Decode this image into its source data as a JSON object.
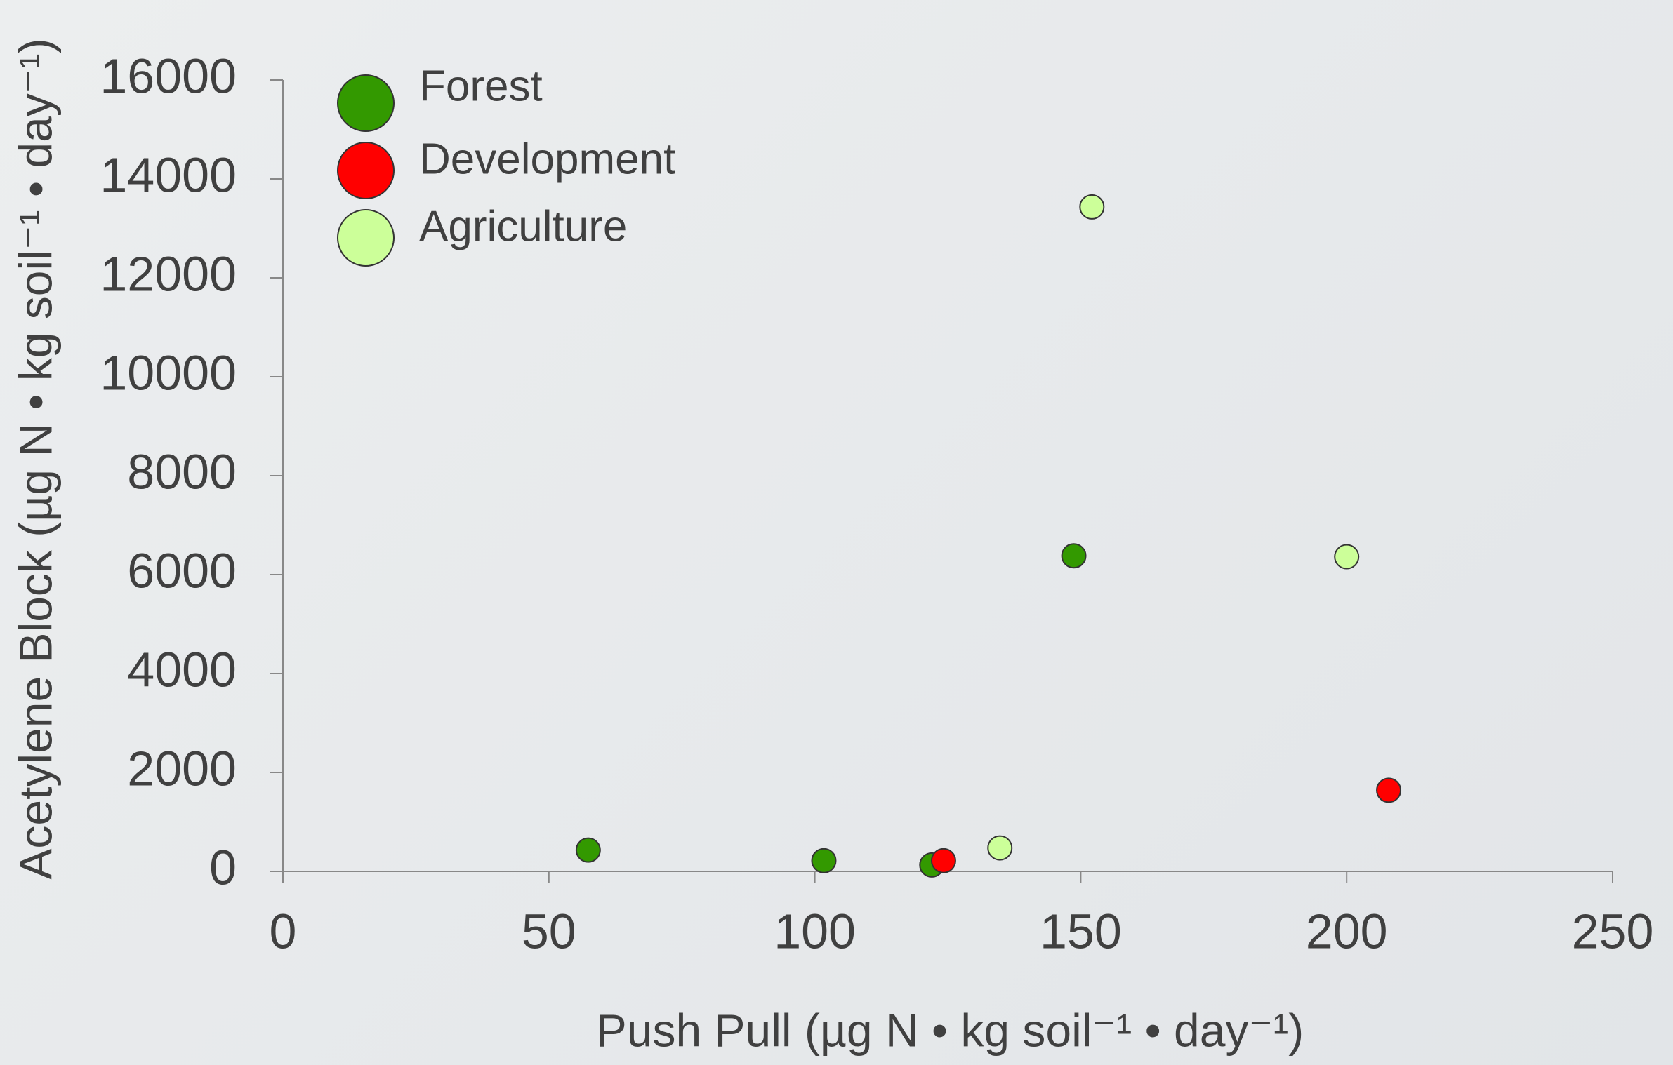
{
  "chart_data": {
    "type": "scatter",
    "xlabel": "Push Pull (µg N • kg soil⁻¹ • day⁻¹)",
    "ylabel": "Acetylene Block (µg N • kg soil⁻¹ • day⁻¹)",
    "xlim": [
      0,
      250
    ],
    "xticks": [
      0,
      50,
      100,
      150,
      200,
      250
    ],
    "ylim": [
      0,
      16000
    ],
    "yticks": [
      0,
      2000,
      4000,
      6000,
      8000,
      10000,
      12000,
      14000,
      16000
    ],
    "legend": "upper left",
    "grid": false,
    "series": [
      {
        "name": "Forest",
        "color": "#339900",
        "x": [
          57.4,
          101.7,
          122,
          148.7
        ],
        "values": [
          430,
          216,
          130,
          6380
        ]
      },
      {
        "name": "Development",
        "color": "#ff0000",
        "x": [
          124.2,
          207.9
        ],
        "values": [
          216,
          1640
        ]
      },
      {
        "name": "Agriculture",
        "color": "#ccff99",
        "x": [
          152.1,
          134.8,
          200
        ],
        "values": [
          13434,
          474,
          6361
        ]
      }
    ]
  }
}
